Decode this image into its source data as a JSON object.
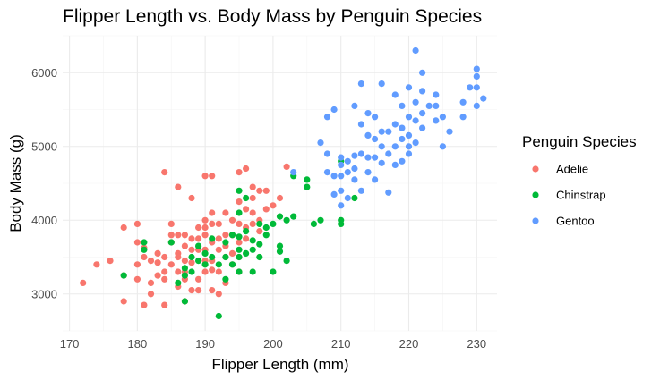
{
  "chart_data": {
    "type": "scatter",
    "title": "Flipper Length vs. Body Mass by Penguin Species",
    "xlabel": "Flipper Length (mm)",
    "ylabel": "Body Mass (g)",
    "xlim": [
      169,
      233
    ],
    "ylim": [
      2500,
      6500
    ],
    "xticks": [
      170,
      180,
      190,
      200,
      210,
      220,
      230
    ],
    "yticks": [
      3000,
      4000,
      5000,
      6000
    ],
    "grid": true,
    "legend": {
      "title": "Penguin Species",
      "position": "right"
    },
    "series": [
      {
        "name": "Adelie",
        "color": "#F8766D",
        "points": [
          [
            172,
            3150
          ],
          [
            174,
            3400
          ],
          [
            176,
            3450
          ],
          [
            178,
            3900
          ],
          [
            178,
            2900
          ],
          [
            180,
            3950
          ],
          [
            180,
            3700
          ],
          [
            180,
            3200
          ],
          [
            181,
            2850
          ],
          [
            181,
            3500
          ],
          [
            181,
            3625
          ],
          [
            182,
            3450
          ],
          [
            182,
            3150
          ],
          [
            183,
            3550
          ],
          [
            183,
            3250
          ],
          [
            184,
            4650
          ],
          [
            184,
            3500
          ],
          [
            184,
            2850
          ],
          [
            184,
            3300
          ],
          [
            185,
            3800
          ],
          [
            185,
            3950
          ],
          [
            185,
            3400
          ],
          [
            185,
            3700
          ],
          [
            186,
            4450
          ],
          [
            186,
            3800
          ],
          [
            186,
            3550
          ],
          [
            186,
            3100
          ],
          [
            186,
            3500
          ],
          [
            187,
            3800
          ],
          [
            187,
            3650
          ],
          [
            187,
            3300
          ],
          [
            187,
            3200
          ],
          [
            187,
            2900
          ],
          [
            187,
            3450
          ],
          [
            188,
            4300
          ],
          [
            188,
            3750
          ],
          [
            188,
            3600
          ],
          [
            188,
            3425
          ],
          [
            188,
            3050
          ],
          [
            189,
            3900
          ],
          [
            189,
            3600
          ],
          [
            189,
            3200
          ],
          [
            189,
            3050
          ],
          [
            190,
            4600
          ],
          [
            190,
            4000
          ],
          [
            190,
            3800
          ],
          [
            190,
            3600
          ],
          [
            190,
            3450
          ],
          [
            190,
            3300
          ],
          [
            190,
            3900
          ],
          [
            191,
            4600
          ],
          [
            191,
            3950
          ],
          [
            191,
            3700
          ],
          [
            191,
            3450
          ],
          [
            191,
            3050
          ],
          [
            191,
            3325
          ],
          [
            192,
            3950
          ],
          [
            192,
            3750
          ],
          [
            192,
            3600
          ],
          [
            192,
            3300
          ],
          [
            192,
            3000
          ],
          [
            193,
            4100
          ],
          [
            193,
            3800
          ],
          [
            193,
            3650
          ],
          [
            193,
            3500
          ],
          [
            193,
            3150
          ],
          [
            194,
            4000
          ],
          [
            194,
            3800
          ],
          [
            194,
            3550
          ],
          [
            194,
            3400
          ],
          [
            195,
            4650
          ],
          [
            195,
            4250
          ],
          [
            195,
            3950
          ],
          [
            195,
            3700
          ],
          [
            195,
            3500
          ],
          [
            195,
            3300
          ],
          [
            196,
            4700
          ],
          [
            196,
            4150
          ],
          [
            196,
            3900
          ],
          [
            196,
            3750
          ],
          [
            197,
            4450
          ],
          [
            197,
            4300
          ],
          [
            197,
            4100
          ],
          [
            197,
            3950
          ],
          [
            198,
            4400
          ],
          [
            198,
            4000
          ],
          [
            198,
            3850
          ],
          [
            199,
            4150
          ],
          [
            199,
            4400
          ],
          [
            200,
            4200
          ],
          [
            201,
            4300
          ],
          [
            202,
            4725
          ],
          [
            184,
            3200
          ],
          [
            183,
            3425
          ],
          [
            186,
            3300
          ],
          [
            182,
            3000
          ],
          [
            189,
            3750
          ],
          [
            191,
            4100
          ],
          [
            180,
            3400
          ],
          [
            178,
            3250
          ]
        ]
      },
      {
        "name": "Chinstrap",
        "color": "#00BA38",
        "points": [
          [
            178,
            3250
          ],
          [
            181,
            3700
          ],
          [
            181,
            3600
          ],
          [
            185,
            3700
          ],
          [
            186,
            3150
          ],
          [
            187,
            3350
          ],
          [
            187,
            3250
          ],
          [
            187,
            2900
          ],
          [
            188,
            3500
          ],
          [
            188,
            3300
          ],
          [
            189,
            3650
          ],
          [
            189,
            3450
          ],
          [
            190,
            3550
          ],
          [
            190,
            3400
          ],
          [
            191,
            3500
          ],
          [
            191,
            3750
          ],
          [
            192,
            3400
          ],
          [
            192,
            2700
          ],
          [
            193,
            3700
          ],
          [
            193,
            3500
          ],
          [
            193,
            3200
          ],
          [
            194,
            3800
          ],
          [
            194,
            3400
          ],
          [
            195,
            4400
          ],
          [
            195,
            4100
          ],
          [
            195,
            3775
          ],
          [
            195,
            3600
          ],
          [
            195,
            3500
          ],
          [
            195,
            3300
          ],
          [
            196,
            4300
          ],
          [
            196,
            3850
          ],
          [
            196,
            3550
          ],
          [
            197,
            3725
          ],
          [
            197,
            3300
          ],
          [
            197,
            3600
          ],
          [
            198,
            3950
          ],
          [
            198,
            3675
          ],
          [
            198,
            3500
          ],
          [
            199,
            3800
          ],
          [
            199,
            3900
          ],
          [
            200,
            3950
          ],
          [
            200,
            3300
          ],
          [
            201,
            4050
          ],
          [
            201,
            3650
          ],
          [
            201,
            3575
          ],
          [
            202,
            4000
          ],
          [
            202,
            3450
          ],
          [
            203,
            4050
          ],
          [
            203,
            4600
          ],
          [
            205,
            4550
          ],
          [
            205,
            4450
          ],
          [
            206,
            3950
          ],
          [
            207,
            4000
          ],
          [
            210,
            4800
          ],
          [
            210,
            4000
          ],
          [
            210,
            3950
          ],
          [
            212,
            4300
          ]
        ]
      },
      {
        "name": "Gentoo",
        "color": "#619CFF",
        "points": [
          [
            203,
            4650
          ],
          [
            207,
            5050
          ],
          [
            208,
            4900
          ],
          [
            208,
            4650
          ],
          [
            209,
            4600
          ],
          [
            209,
            4350
          ],
          [
            210,
            4750
          ],
          [
            210,
            4600
          ],
          [
            210,
            4400
          ],
          [
            210,
            4200
          ],
          [
            210,
            4850
          ],
          [
            211,
            4800
          ],
          [
            211,
            4650
          ],
          [
            211,
            4300
          ],
          [
            212,
            4875
          ],
          [
            212,
            4550
          ],
          [
            212,
            4700
          ],
          [
            213,
            5300
          ],
          [
            213,
            4900
          ],
          [
            213,
            4400
          ],
          [
            214,
            5150
          ],
          [
            214,
            4850
          ],
          [
            214,
            4650
          ],
          [
            215,
            5400
          ],
          [
            215,
            5100
          ],
          [
            215,
            4850
          ],
          [
            215,
            4550
          ],
          [
            216,
            5200
          ],
          [
            216,
            5000
          ],
          [
            216,
            4775
          ],
          [
            217,
            5200
          ],
          [
            217,
            4900
          ],
          [
            217,
            4375
          ],
          [
            218,
            5300
          ],
          [
            218,
            5000
          ],
          [
            218,
            4750
          ],
          [
            219,
            5550
          ],
          [
            219,
            5250
          ],
          [
            219,
            5100
          ],
          [
            219,
            4800
          ],
          [
            220,
            5800
          ],
          [
            220,
            5400
          ],
          [
            220,
            5150
          ],
          [
            220,
            4900
          ],
          [
            221,
            6300
          ],
          [
            221,
            5600
          ],
          [
            221,
            5350
          ],
          [
            221,
            5050
          ],
          [
            222,
            5750
          ],
          [
            222,
            5450
          ],
          [
            222,
            5250
          ],
          [
            223,
            5550
          ],
          [
            224,
            5350
          ],
          [
            224,
            5550
          ],
          [
            225,
            5000
          ],
          [
            225,
            5400
          ],
          [
            226,
            5200
          ],
          [
            228,
            5600
          ],
          [
            229,
            5800
          ],
          [
            230,
            6050
          ],
          [
            230,
            5800
          ],
          [
            230,
            5550
          ],
          [
            231,
            5650
          ],
          [
            216,
            5850
          ],
          [
            213,
            5850
          ],
          [
            212,
            5550
          ],
          [
            208,
            5400
          ],
          [
            209,
            5500
          ],
          [
            214,
            5450
          ],
          [
            218,
            5700
          ],
          [
            222,
            6000
          ],
          [
            224,
            5700
          ],
          [
            228,
            5400
          ],
          [
            230,
            5950
          ],
          [
            220,
            5000
          ]
        ]
      }
    ]
  }
}
